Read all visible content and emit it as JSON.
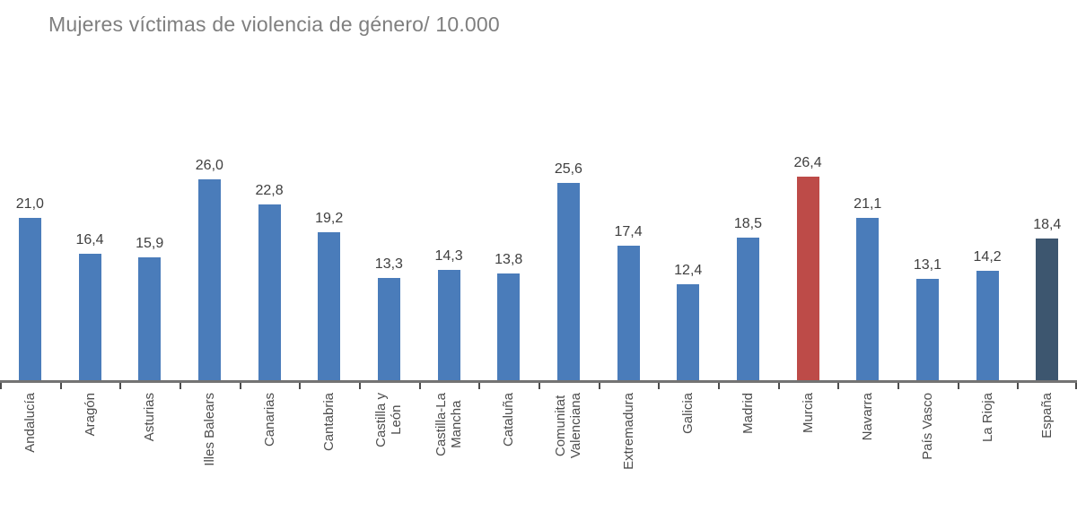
{
  "title": "Mujeres víctimas de violencia de género/ 10.000",
  "chart_data": {
    "type": "bar",
    "title": "Mujeres víctimas de violencia de género/ 10.000",
    "xlabel": "",
    "ylabel": "",
    "ylim": [
      0,
      28
    ],
    "grid": false,
    "legend": false,
    "y_axis_visible": false,
    "value_labels_position": "above-bars",
    "x_labels_rotation_degrees": 90,
    "categories": [
      "Andalucía",
      "Aragón",
      "Asturias",
      "Illes Balears",
      "Canarias",
      "Cantabria",
      "Castilla y\nLeón",
      "Castilla-La\nMancha",
      "Cataluña",
      "Comunitat\nValenciana",
      "Extremadura",
      "Galicia",
      "Madrid",
      "Murcia",
      "Navarra",
      "País Vasco",
      "La Rioja",
      "España"
    ],
    "values": [
      21.0,
      16.4,
      15.9,
      26.0,
      22.8,
      19.2,
      13.3,
      14.3,
      13.8,
      25.6,
      17.4,
      12.4,
      18.5,
      26.4,
      21.1,
      13.1,
      14.2,
      18.4
    ],
    "value_labels": [
      "21,0",
      "16,4",
      "15,9",
      "26,0",
      "22,8",
      "19,2",
      "13,3",
      "14,3",
      "13,8",
      "25,6",
      "17,4",
      "12,4",
      "18,5",
      "26,4",
      "21,1",
      "13,1",
      "14,2",
      "18,4"
    ],
    "bar_color_default": "#4a7cba",
    "highlights": [
      {
        "category": "Murcia",
        "color": "#bd4b48"
      },
      {
        "category": "España",
        "color": "#3d566f"
      }
    ]
  },
  "colors": {
    "title_text": "#7f7f7f",
    "value_label_text": "#3f3f3f",
    "x_label_text": "#4d4d4d",
    "axis_line": "#737373",
    "tick": "#4d4d4d",
    "background": "#ffffff"
  }
}
